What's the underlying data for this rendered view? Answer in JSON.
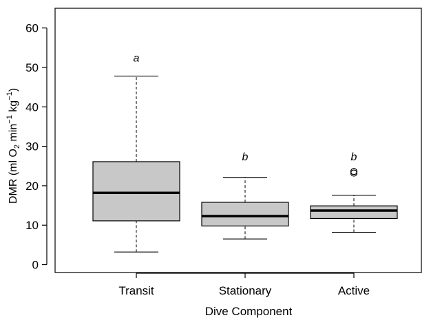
{
  "chart_data": {
    "type": "box",
    "title": "",
    "xlabel": "Dive Component",
    "ylabel": {
      "prefix": "DMR (ml O",
      "sub": "2",
      "mid1": " min",
      "sup1": "−1",
      "mid2": " kg",
      "sup2": "−1",
      "suffix": ")"
    },
    "ylim": [
      -2,
      65
    ],
    "yticks": [
      0,
      10,
      20,
      30,
      40,
      50,
      60
    ],
    "categories": [
      "Transit",
      "Stationary",
      "Active"
    ],
    "boxes": [
      {
        "category": "Transit",
        "whisker_low": 3.2,
        "q1": 11.1,
        "median": 18.2,
        "q3": 26.1,
        "whisker_high": 47.8,
        "outliers": [],
        "letter": "a",
        "letter_y": 52.5
      },
      {
        "category": "Stationary",
        "whisker_low": 6.5,
        "q1": 9.8,
        "median": 12.3,
        "q3": 15.8,
        "whisker_high": 22.1,
        "outliers": [],
        "letter": "b",
        "letter_y": 27.5
      },
      {
        "category": "Active",
        "whisker_low": 8.2,
        "q1": 11.7,
        "median": 13.7,
        "q3": 14.9,
        "whisker_high": 17.6,
        "outliers": [
          23.2,
          23.6
        ],
        "letter": "b",
        "letter_y": 27.5
      }
    ],
    "colors": {
      "box_fill": "#c8c8c8",
      "stroke": "#000000",
      "background": "#ffffff"
    },
    "grid": false,
    "legend": "none"
  }
}
